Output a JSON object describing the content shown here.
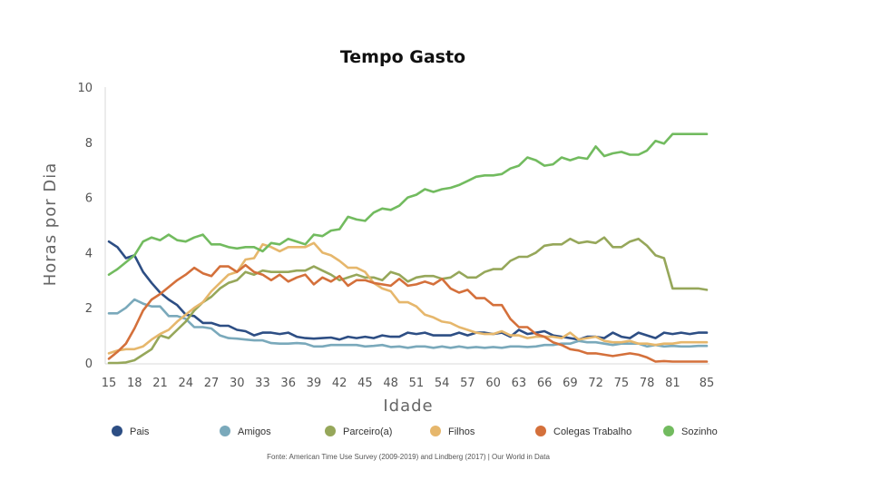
{
  "chart_data": {
    "type": "line",
    "title": "Tempo Gasto",
    "xlabel": "Idade",
    "ylabel": "Horas por Dia",
    "xlim": [
      15,
      85
    ],
    "ylim": [
      0,
      10
    ],
    "xticks": [
      15,
      18,
      21,
      24,
      27,
      30,
      33,
      36,
      39,
      42,
      45,
      48,
      51,
      54,
      57,
      60,
      63,
      66,
      69,
      72,
      75,
      78,
      81,
      85
    ],
    "yticks": [
      0,
      2,
      4,
      6,
      8,
      10
    ],
    "grid": false,
    "legend_position": "bottom",
    "source": "Fonte: American Time Use Survey (2009-2019) and Lindberg (2017) | Our World in Data",
    "x": [
      15,
      16,
      17,
      18,
      19,
      20,
      21,
      22,
      23,
      24,
      25,
      26,
      27,
      28,
      29,
      30,
      31,
      32,
      33,
      34,
      35,
      36,
      37,
      38,
      39,
      40,
      41,
      42,
      43,
      44,
      45,
      46,
      47,
      48,
      49,
      50,
      51,
      52,
      53,
      54,
      55,
      56,
      57,
      58,
      59,
      60,
      61,
      62,
      63,
      64,
      65,
      66,
      67,
      68,
      69,
      70,
      71,
      72,
      73,
      74,
      75,
      76,
      77,
      78,
      79,
      80,
      81,
      82,
      83,
      84,
      85
    ],
    "series": [
      {
        "name": "Pais",
        "color": "#2d4e84",
        "values": [
          4.4,
          4.2,
          3.8,
          3.9,
          3.3,
          2.9,
          2.55,
          2.3,
          2.1,
          1.75,
          1.7,
          1.45,
          1.45,
          1.35,
          1.35,
          1.2,
          1.15,
          1.0,
          1.1,
          1.1,
          1.05,
          1.1,
          0.95,
          0.9,
          0.88,
          0.9,
          0.92,
          0.85,
          0.95,
          0.9,
          0.95,
          0.9,
          1.0,
          0.95,
          0.95,
          1.1,
          1.05,
          1.1,
          1.0,
          1.0,
          1.0,
          1.1,
          1.0,
          1.1,
          1.1,
          1.05,
          1.1,
          0.95,
          1.2,
          1.05,
          1.1,
          1.15,
          1.0,
          0.95,
          0.9,
          0.85,
          0.95,
          0.95,
          0.9,
          1.1,
          0.95,
          0.9,
          1.1,
          1.0,
          0.9,
          1.1,
          1.05,
          1.1,
          1.05,
          1.1,
          1.1
        ]
      },
      {
        "name": "Amigos",
        "color": "#7aa9bb",
        "values": [
          1.8,
          1.8,
          2.0,
          2.3,
          2.15,
          2.05,
          2.05,
          1.7,
          1.7,
          1.6,
          1.3,
          1.3,
          1.25,
          1.0,
          0.9,
          0.88,
          0.85,
          0.82,
          0.82,
          0.72,
          0.7,
          0.7,
          0.72,
          0.7,
          0.6,
          0.6,
          0.65,
          0.65,
          0.65,
          0.65,
          0.6,
          0.62,
          0.65,
          0.58,
          0.6,
          0.55,
          0.6,
          0.6,
          0.55,
          0.6,
          0.55,
          0.6,
          0.55,
          0.58,
          0.55,
          0.58,
          0.55,
          0.6,
          0.6,
          0.58,
          0.6,
          0.65,
          0.65,
          0.7,
          0.7,
          0.8,
          0.75,
          0.75,
          0.7,
          0.65,
          0.7,
          0.7,
          0.7,
          0.6,
          0.65,
          0.6,
          0.62,
          0.6,
          0.6,
          0.62,
          0.62
        ]
      },
      {
        "name": "Parceiro(a)",
        "color": "#96a75a",
        "values": [
          0.0,
          0.0,
          0.02,
          0.1,
          0.3,
          0.5,
          1.0,
          0.9,
          1.2,
          1.5,
          1.9,
          2.2,
          2.4,
          2.7,
          2.9,
          3.0,
          3.3,
          3.2,
          3.35,
          3.3,
          3.3,
          3.3,
          3.35,
          3.35,
          3.5,
          3.35,
          3.2,
          3.0,
          3.1,
          3.2,
          3.1,
          3.1,
          3.0,
          3.3,
          3.2,
          2.95,
          3.1,
          3.15,
          3.15,
          3.05,
          3.1,
          3.3,
          3.1,
          3.1,
          3.3,
          3.4,
          3.4,
          3.7,
          3.85,
          3.85,
          4.0,
          4.25,
          4.3,
          4.3,
          4.5,
          4.35,
          4.4,
          4.35,
          4.55,
          4.2,
          4.2,
          4.4,
          4.5,
          4.25,
          3.9,
          3.8,
          2.7,
          2.7,
          2.7,
          2.7,
          2.65
        ]
      },
      {
        "name": "Filhos",
        "color": "#e6b76c",
        "values": [
          0.35,
          0.45,
          0.5,
          0.5,
          0.6,
          0.85,
          1.05,
          1.2,
          1.5,
          1.75,
          2.0,
          2.2,
          2.6,
          2.9,
          3.2,
          3.3,
          3.75,
          3.8,
          4.3,
          4.2,
          4.05,
          4.2,
          4.2,
          4.2,
          4.35,
          4.0,
          3.9,
          3.7,
          3.45,
          3.45,
          3.3,
          2.9,
          2.7,
          2.6,
          2.2,
          2.2,
          2.05,
          1.75,
          1.65,
          1.5,
          1.45,
          1.3,
          1.2,
          1.1,
          1.05,
          1.05,
          1.15,
          1.0,
          1.0,
          0.9,
          0.95,
          0.95,
          0.95,
          0.9,
          1.1,
          0.85,
          0.9,
          0.95,
          0.8,
          0.75,
          0.75,
          0.8,
          0.7,
          0.7,
          0.65,
          0.7,
          0.7,
          0.75,
          0.75,
          0.75,
          0.75
        ]
      },
      {
        "name": "Colegas Trabalho",
        "color": "#d4703b",
        "values": [
          0.15,
          0.4,
          0.7,
          1.25,
          1.9,
          2.3,
          2.5,
          2.75,
          3.0,
          3.2,
          3.45,
          3.25,
          3.15,
          3.5,
          3.5,
          3.3,
          3.55,
          3.3,
          3.2,
          3.0,
          3.2,
          2.95,
          3.1,
          3.2,
          2.85,
          3.1,
          2.95,
          3.15,
          2.8,
          3.0,
          3.0,
          2.9,
          2.85,
          2.8,
          3.05,
          2.8,
          2.85,
          2.95,
          2.85,
          3.05,
          2.7,
          2.55,
          2.65,
          2.35,
          2.35,
          2.1,
          2.1,
          1.6,
          1.3,
          1.3,
          1.05,
          0.95,
          0.75,
          0.65,
          0.5,
          0.45,
          0.35,
          0.35,
          0.3,
          0.25,
          0.3,
          0.35,
          0.3,
          0.2,
          0.05,
          0.07,
          0.05,
          0.05,
          0.05,
          0.05,
          0.05
        ]
      },
      {
        "name": "Sozinho",
        "color": "#72bb5f",
        "values": [
          3.2,
          3.4,
          3.65,
          3.9,
          4.4,
          4.55,
          4.45,
          4.65,
          4.45,
          4.4,
          4.55,
          4.65,
          4.3,
          4.3,
          4.2,
          4.15,
          4.2,
          4.2,
          4.05,
          4.35,
          4.3,
          4.5,
          4.4,
          4.3,
          4.65,
          4.6,
          4.8,
          4.85,
          5.3,
          5.2,
          5.15,
          5.45,
          5.6,
          5.55,
          5.7,
          6.0,
          6.1,
          6.3,
          6.2,
          6.3,
          6.35,
          6.45,
          6.6,
          6.75,
          6.8,
          6.8,
          6.85,
          7.05,
          7.15,
          7.45,
          7.35,
          7.15,
          7.2,
          7.45,
          7.35,
          7.45,
          7.4,
          7.85,
          7.5,
          7.6,
          7.65,
          7.55,
          7.55,
          7.7,
          8.05,
          7.95,
          8.3,
          8.3,
          8.3,
          8.3,
          8.3
        ]
      }
    ]
  }
}
